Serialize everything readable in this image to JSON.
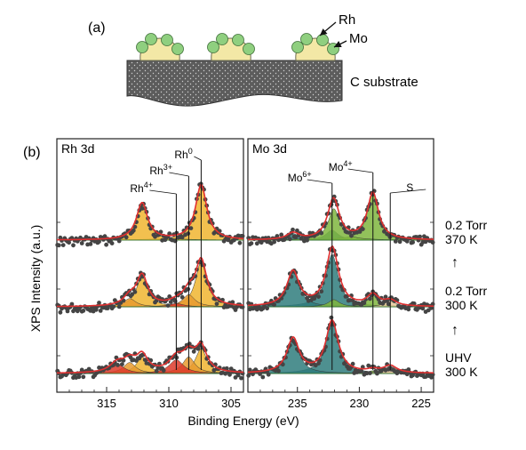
{
  "schematic": {
    "panel_label": "(a)",
    "rh_label": "Rh",
    "mo_label": "Mo",
    "substrate_label": "C substrate",
    "colors": {
      "particle": "#f3e8a6",
      "particle_edge": "#6b6b50",
      "mo_ball": "#8fcf7f",
      "mo_edge": "#3f6f3a",
      "substrate": "#5c5c5c"
    }
  },
  "panel_b_label": "(b)",
  "y_axis_label": "XPS Intensity (a.u.)",
  "x_axis_label": "Binding Energy (eV)",
  "conditions": [
    {
      "line1": "0.2 Torr",
      "line2": "370 K"
    },
    {
      "line1": "0.2 Torr",
      "line2": "300 K"
    },
    {
      "line1": "UHV",
      "line2": "300 K"
    }
  ],
  "arrow_glyph": "↑",
  "chart_data": [
    {
      "type": "line",
      "title": "Rh 3d",
      "xlabel": "Binding Energy (eV)",
      "ylabel": "XPS Intensity (a.u.)",
      "xlim": [
        319,
        304
      ],
      "x_reversed": true,
      "xticks": [
        315,
        310,
        305
      ],
      "xtick_labels": [
        "315",
        "310",
        "305"
      ],
      "grid": false,
      "colors": {
        "fit": "#e03030",
        "data": "#444444",
        "Rh0": "#f0b530",
        "Rh3+": "#e89a2e",
        "Rh4+": "#dd3a2a",
        "baseline": "#3a8a3a"
      },
      "peak_labels": [
        {
          "text": "Rh",
          "sup": "0",
          "energy": 307.4
        },
        {
          "text": "Rh",
          "sup": "3+",
          "energy": 308.4
        },
        {
          "text": "Rh",
          "sup": "4+",
          "energy": 309.4
        }
      ],
      "spectra": [
        {
          "condition": "0.2 Torr, 370 K",
          "components": [
            {
              "name": "Rh0",
              "center": 307.4,
              "height": 1.0,
              "width": 0.55
            },
            {
              "name": "Rh0",
              "center": 312.15,
              "height": 0.67,
              "width": 0.55
            }
          ]
        },
        {
          "condition": "0.2 Torr, 300 K",
          "components": [
            {
              "name": "Rh0",
              "center": 307.4,
              "height": 0.82,
              "width": 0.55
            },
            {
              "name": "Rh0",
              "center": 312.15,
              "height": 0.55,
              "width": 0.55
            },
            {
              "name": "Rh3+",
              "center": 308.4,
              "height": 0.22,
              "width": 0.6
            },
            {
              "name": "Rh3+",
              "center": 313.15,
              "height": 0.15,
              "width": 0.6
            },
            {
              "name": "Rh4+",
              "center": 309.4,
              "height": 0.06,
              "width": 0.7
            }
          ]
        },
        {
          "condition": "UHV, 300 K",
          "components": [
            {
              "name": "Rh0",
              "center": 307.4,
              "height": 0.45,
              "width": 0.55
            },
            {
              "name": "Rh0",
              "center": 312.15,
              "height": 0.3,
              "width": 0.55
            },
            {
              "name": "Rh3+",
              "center": 308.4,
              "height": 0.3,
              "width": 0.6
            },
            {
              "name": "Rh3+",
              "center": 313.15,
              "height": 0.2,
              "width": 0.6
            },
            {
              "name": "Rh4+",
              "center": 309.4,
              "height": 0.25,
              "width": 0.7
            },
            {
              "name": "Rh4+",
              "center": 314.15,
              "height": 0.17,
              "width": 0.7
            }
          ]
        }
      ]
    },
    {
      "type": "line",
      "title": "Mo 3d",
      "xlabel": "Binding Energy (eV)",
      "ylabel": "XPS Intensity (a.u.)",
      "xlim": [
        239,
        224
      ],
      "x_reversed": true,
      "xticks": [
        235,
        230,
        225
      ],
      "xtick_labels": [
        "235",
        "230",
        "225"
      ],
      "grid": false,
      "colors": {
        "fit": "#e03030",
        "data": "#444444",
        "Mo6+": "#2f7d7d",
        "Mo4+": "#7fb63e",
        "S": "#e6c89a",
        "baseline": "#3a8a3a"
      },
      "peak_labels": [
        {
          "text": "Mo",
          "sup": "6+",
          "energy": 232.2
        },
        {
          "text": "Mo",
          "sup": "4+",
          "energy": 228.9
        },
        {
          "text": "S",
          "sup": "",
          "energy": 227.5
        }
      ],
      "spectra": [
        {
          "condition": "0.2 Torr, 370 K",
          "components": [
            {
              "name": "Mo6+",
              "center": 232.2,
              "height": 0.18,
              "width": 0.6
            },
            {
              "name": "Mo6+",
              "center": 235.35,
              "height": 0.12,
              "width": 0.6
            },
            {
              "name": "Mo4+",
              "center": 228.9,
              "height": 0.85,
              "width": 0.55
            },
            {
              "name": "Mo4+",
              "center": 232.05,
              "height": 0.57,
              "width": 0.55
            }
          ]
        },
        {
          "condition": "0.2 Torr, 300 K",
          "components": [
            {
              "name": "Mo6+",
              "center": 232.2,
              "height": 0.95,
              "width": 0.6
            },
            {
              "name": "Mo6+",
              "center": 235.35,
              "height": 0.63,
              "width": 0.6
            },
            {
              "name": "Mo4+",
              "center": 228.9,
              "height": 0.2,
              "width": 0.55
            },
            {
              "name": "Mo4+",
              "center": 232.05,
              "height": 0.13,
              "width": 0.55
            },
            {
              "name": "S",
              "center": 227.5,
              "height": 0.1,
              "width": 0.6
            }
          ]
        },
        {
          "condition": "UHV, 300 K",
          "components": [
            {
              "name": "Mo6+",
              "center": 232.2,
              "height": 0.95,
              "width": 0.6
            },
            {
              "name": "Mo6+",
              "center": 235.35,
              "height": 0.63,
              "width": 0.6
            },
            {
              "name": "Mo4+",
              "center": 228.9,
              "height": 0.05,
              "width": 0.55
            },
            {
              "name": "S",
              "center": 227.5,
              "height": 0.13,
              "width": 0.65
            }
          ]
        }
      ]
    }
  ]
}
